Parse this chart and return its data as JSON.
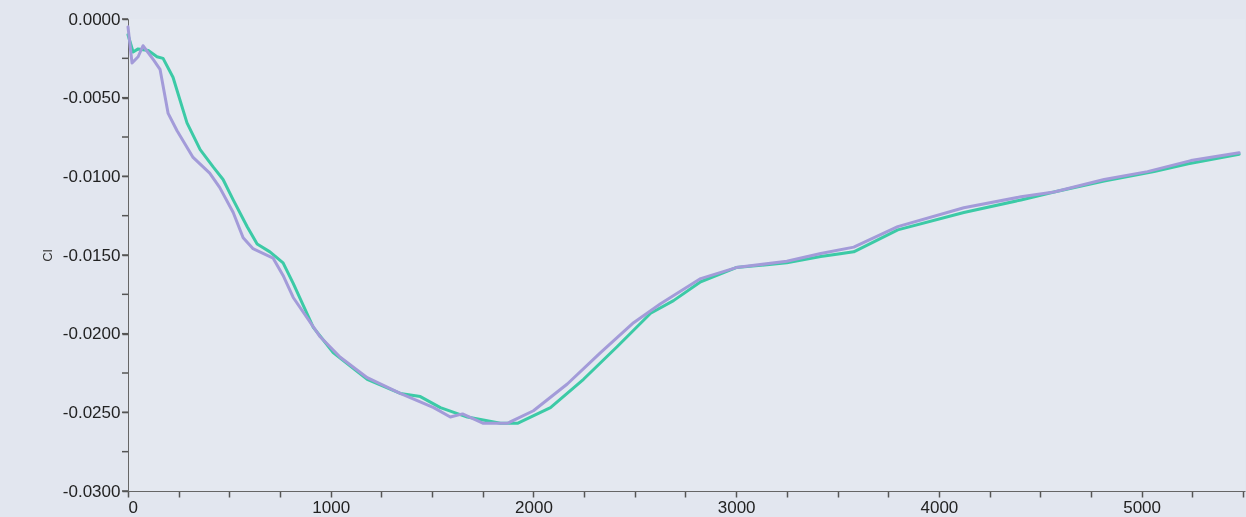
{
  "chart_data": {
    "type": "line",
    "ylabel": "Cl",
    "xlim": [
      0,
      5510
    ],
    "ylim": [
      -0.03,
      0
    ],
    "xticks": [
      0,
      {
        "value": 250,
        "label": null
      },
      {
        "value": 500,
        "label": null
      },
      {
        "value": 750,
        "label": null
      },
      1000,
      {
        "value": 1250,
        "label": null
      },
      {
        "value": 1500,
        "label": null
      },
      {
        "value": 1750,
        "label": null
      },
      2000,
      {
        "value": 2250,
        "label": null
      },
      {
        "value": 2500,
        "label": null
      },
      {
        "value": 2750,
        "label": null
      },
      3000,
      {
        "value": 3250,
        "label": null
      },
      {
        "value": 3500,
        "label": null
      },
      {
        "value": 3750,
        "label": null
      },
      4000,
      {
        "value": 4250,
        "label": null
      },
      {
        "value": 4500,
        "label": null
      },
      {
        "value": 4750,
        "label": null
      },
      5000,
      {
        "value": 5250,
        "label": null
      },
      {
        "value": 5500,
        "label": null
      }
    ],
    "yticks": [
      {
        "value": 0,
        "label": "0.0000"
      },
      {
        "value": -0.0025,
        "label": null
      },
      {
        "value": -0.005,
        "label": "-0.0050"
      },
      {
        "value": -0.0075,
        "label": null
      },
      {
        "value": -0.01,
        "label": "-0.0100"
      },
      {
        "value": -0.0125,
        "label": null
      },
      {
        "value": -0.015,
        "label": "-0.0150"
      },
      {
        "value": -0.0175,
        "label": null
      },
      {
        "value": -0.02,
        "label": "-0.0200"
      },
      {
        "value": -0.0225,
        "label": null
      },
      {
        "value": -0.025,
        "label": "-0.0250"
      },
      {
        "value": -0.0275,
        "label": null
      },
      {
        "value": -0.03,
        "label": "-0.0300"
      }
    ],
    "grid": false,
    "marker": "none",
    "line_style": "solid",
    "series": [
      {
        "color": "#3ccaa6",
        "x": [
          0,
          25,
          50,
          100,
          143,
          173,
          222,
          291,
          356,
          420,
          469,
          519,
          588,
          637,
          700,
          765,
          815,
          914,
          1012,
          1180,
          1343,
          1442,
          1541,
          1674,
          1837,
          1921,
          2084,
          2247,
          2415,
          2578,
          2691,
          2825,
          3000,
          3250,
          3417,
          3580,
          3797,
          4123,
          4405,
          4568,
          4815,
          5062,
          5230,
          5481
        ],
        "values": [
          -0.001,
          -0.0021,
          -0.0019,
          -0.002,
          -0.0024,
          -0.0025,
          -0.0037,
          -0.0066,
          -0.0083,
          -0.0094,
          -0.0102,
          -0.0115,
          -0.0132,
          -0.0143,
          -0.0148,
          -0.0155,
          -0.0168,
          -0.0196,
          -0.0212,
          -0.0229,
          -0.0238,
          -0.024,
          -0.0247,
          -0.0253,
          -0.0257,
          -0.0257,
          -0.0247,
          -0.0229,
          -0.0208,
          -0.0187,
          -0.0179,
          -0.0167,
          -0.0158,
          -0.0155,
          -0.0151,
          -0.0148,
          -0.0134,
          -0.0123,
          -0.0115,
          -0.011,
          -0.0103,
          -0.0097,
          -0.0092,
          -0.0086
        ]
      },
      {
        "color": "#a39bd9",
        "x": [
          0,
          20,
          50,
          74,
          126,
          158,
          198,
          242,
          321,
          403,
          452,
          519,
          568,
          617,
          716,
          765,
          815,
          948,
          1047,
          1180,
          1343,
          1508,
          1590,
          1650,
          1753,
          1871,
          2000,
          2167,
          2331,
          2494,
          2627,
          2825,
          3000,
          3250,
          3417,
          3580,
          3797,
          4123,
          4405,
          4568,
          4815,
          5029,
          5243,
          5481
        ],
        "values": [
          -0.0005,
          -0.0028,
          -0.0024,
          -0.0017,
          -0.0026,
          -0.0032,
          -0.006,
          -0.0071,
          -0.0088,
          -0.0098,
          -0.0107,
          -0.0123,
          -0.0139,
          -0.0146,
          -0.0152,
          -0.0163,
          -0.0177,
          -0.0202,
          -0.0215,
          -0.0228,
          -0.0238,
          -0.0247,
          -0.0253,
          -0.0251,
          -0.0257,
          -0.0257,
          -0.0249,
          -0.0232,
          -0.0212,
          -0.0193,
          -0.0181,
          -0.0165,
          -0.0158,
          -0.0154,
          -0.0149,
          -0.0145,
          -0.0132,
          -0.012,
          -0.0113,
          -0.011,
          -0.0102,
          -0.0097,
          -0.009,
          -0.0085
        ]
      }
    ]
  }
}
